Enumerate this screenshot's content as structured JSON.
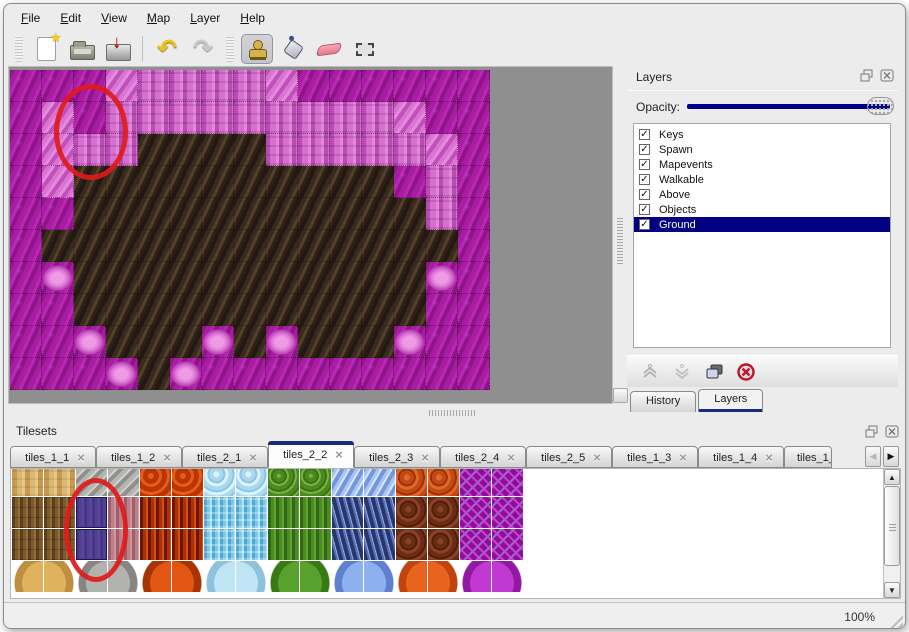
{
  "colors": {
    "selection_navy": "#000080",
    "slider_navy": "#000089",
    "annotation_red": "#e01a1a",
    "magenta_ground": "#a81ea2",
    "cave_floor_brown": "#35261c"
  },
  "menu_bar": {
    "items": [
      {
        "label": "File"
      },
      {
        "label": "Edit"
      },
      {
        "label": "View"
      },
      {
        "label": "Map"
      },
      {
        "label": "Layer"
      },
      {
        "label": "Help"
      }
    ]
  },
  "toolbar": {
    "buttons": [
      {
        "name": "new-file"
      },
      {
        "name": "open-file"
      },
      {
        "name": "save-file"
      },
      {
        "name": "undo"
      },
      {
        "name": "redo"
      },
      {
        "name": "stamp-tool",
        "selected": true
      },
      {
        "name": "fill-tool"
      },
      {
        "name": "eraser-tool"
      },
      {
        "name": "rect-select-tool"
      }
    ]
  },
  "map_view": {
    "tile_size": 32,
    "columns": 15,
    "rows": 10,
    "legend": {
      "M": "magenta-ground",
      "R": "light-pink-rock",
      "P": "pink-pillar-rock",
      "b": "pink-boulder",
      "B": "dark-cave-floor"
    },
    "grid": [
      "MMMRPPPPRMMMMMM",
      "MRMPPPPPPPPPRMM",
      "MRPPBBBBPPPPPRM",
      "MRBBBBBBBBBBMPM",
      "MMBBBBBBBBBBBPM",
      "MBBBBBBBBBBBBBM",
      "MbBBBBBBBBBBBbM",
      "MMBBBBBBBBBBBMM",
      "MMbBBBbBbBBBbMM",
      "MMMbBbMMMMMMMMM"
    ],
    "annotation": {
      "shape": "red-ellipse",
      "color": "#e01a1a"
    }
  },
  "layers_panel": {
    "title": "Layers",
    "opacity_label": "Opacity:",
    "opacity_percent": 100,
    "layers": [
      {
        "name": "Keys",
        "checked": true
      },
      {
        "name": "Spawn",
        "checked": true
      },
      {
        "name": "Mapevents",
        "checked": true
      },
      {
        "name": "Walkable",
        "checked": true
      },
      {
        "name": "Above",
        "checked": true
      },
      {
        "name": "Objects",
        "checked": true
      },
      {
        "name": "Ground",
        "checked": true,
        "selected": true
      }
    ],
    "buttons": [
      {
        "name": "raise-layer",
        "enabled": false
      },
      {
        "name": "lower-layer",
        "enabled": false
      },
      {
        "name": "duplicate-layer",
        "enabled": true
      },
      {
        "name": "delete-layer",
        "enabled": true
      }
    ],
    "tabs": [
      {
        "label": "History",
        "active": false
      },
      {
        "label": "Layers",
        "active": true
      }
    ]
  },
  "tilesets_panel": {
    "title": "Tilesets",
    "tab_close_glyph": "×",
    "tabs": [
      {
        "label": "tiles_1_1"
      },
      {
        "label": "tiles_1_2"
      },
      {
        "label": "tiles_2_1"
      },
      {
        "label": "tiles_2_2",
        "active": true
      },
      {
        "label": "tiles_2_3"
      },
      {
        "label": "tiles_2_4"
      },
      {
        "label": "tiles_2_5"
      },
      {
        "label": "tiles_1_3"
      },
      {
        "label": "tiles_1_4"
      },
      {
        "label": "tiles_1_",
        "clipped": true
      }
    ],
    "tile_rows": [
      [
        "sand",
        "sand",
        "stone",
        "stone",
        "lava",
        "lava",
        "ice",
        "ice",
        "vine",
        "vine",
        "crystal",
        "crystal",
        "ember",
        "ember",
        "web",
        "web"
      ],
      [
        "bark",
        "bark",
        "mauve",
        "mauve",
        "fire",
        "fire",
        "icecol",
        "icecol",
        "vinebark",
        "vinebark",
        "crystalbark",
        "crystalbark",
        "redrock",
        "redrock",
        "web",
        "web"
      ],
      [
        "bark",
        "bark",
        "mauve",
        "mauve",
        "fire",
        "fire",
        "icecol",
        "icecol",
        "vinebark",
        "vinebark",
        "crystalbark",
        "crystalbark",
        "redrock",
        "redrock",
        "web",
        "web"
      ],
      [
        "sand",
        "sand",
        "stone",
        "stone",
        "lava",
        "lava",
        "ice",
        "ice",
        "vine",
        "vine",
        "crystal",
        "crystal",
        "ember",
        "ember",
        "web",
        "web"
      ]
    ],
    "blob_row_index": 3,
    "selected_cells": [
      [
        1,
        2
      ],
      [
        2,
        2
      ]
    ],
    "annotation": {
      "shape": "red-ellipse",
      "color": "#e01a1a"
    }
  },
  "status_bar": {
    "zoom_level": "100%"
  }
}
